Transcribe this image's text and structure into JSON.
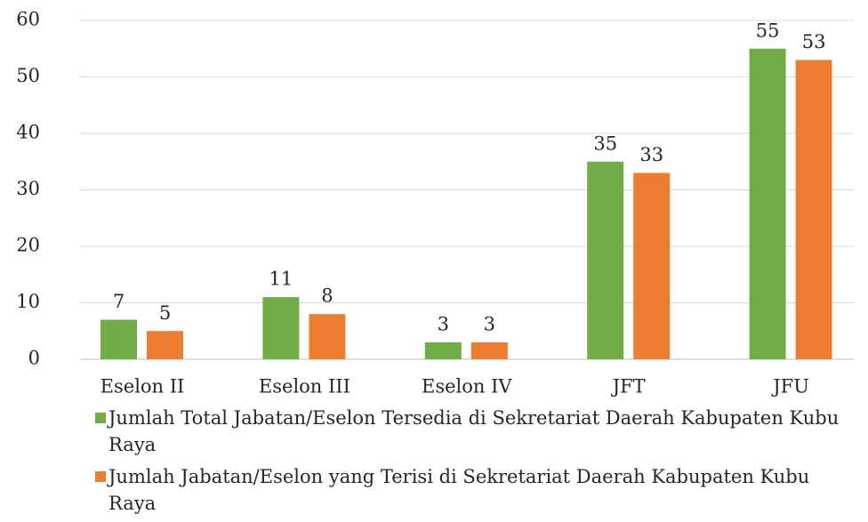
{
  "chart_data": {
    "type": "bar",
    "categories": [
      "Eselon II",
      "Eselon III",
      "Eselon IV",
      "JFT",
      "JFU"
    ],
    "series": [
      {
        "name": "Jumlah Total Jabatan/Eselon Tersedia di Sekretariat Daerah Kabupaten Kubu Raya",
        "color": "#70ad47",
        "values": [
          7,
          11,
          3,
          35,
          55
        ]
      },
      {
        "name": "Jumlah Jabatan/Eselon yang Terisi di Sekretariat Daerah Kabupaten Kubu Raya",
        "color": "#ed7d31",
        "values": [
          5,
          8,
          3,
          33,
          53
        ]
      }
    ],
    "ylim": [
      0,
      60
    ],
    "yticks": [
      0,
      10,
      20,
      30,
      40,
      50,
      60
    ],
    "grid": true,
    "legend": "bottom"
  }
}
